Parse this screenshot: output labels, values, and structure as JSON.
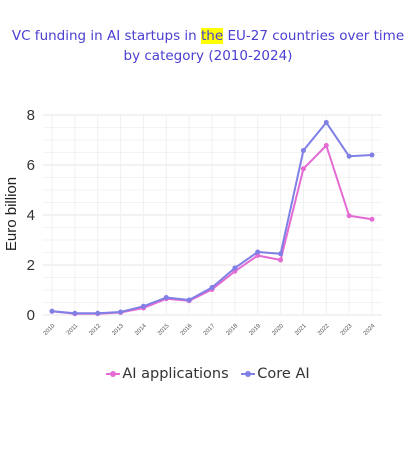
{
  "chart_data": {
    "type": "line",
    "title_parts": [
      "VC funding in AI startups in ",
      "the",
      " EU-27 countries over time by category (2010-2024)"
    ],
    "ylabel": "Euro billion",
    "xlabel": "",
    "x": [
      "2010",
      "2011",
      "2012",
      "2013",
      "2014",
      "2015",
      "2016",
      "2017",
      "2018",
      "2019",
      "2020",
      "2021",
      "2022",
      "2023",
      "2024"
    ],
    "ylim": [
      0,
      8
    ],
    "yticks": [
      0,
      2,
      4,
      6,
      8
    ],
    "grid": true,
    "legend_position": "bottom",
    "series": [
      {
        "name": "AI applications",
        "color": "#e36bd3",
        "values": [
          0.15,
          0.05,
          0.05,
          0.1,
          0.28,
          0.65,
          0.57,
          1.02,
          1.75,
          2.38,
          2.2,
          5.85,
          6.78,
          3.97,
          3.83
        ]
      },
      {
        "name": "Core AI",
        "color": "#7f7fe6",
        "values": [
          0.15,
          0.07,
          0.07,
          0.12,
          0.35,
          0.7,
          0.6,
          1.1,
          1.88,
          2.52,
          2.45,
          6.58,
          7.7,
          6.35,
          6.4
        ]
      }
    ]
  }
}
